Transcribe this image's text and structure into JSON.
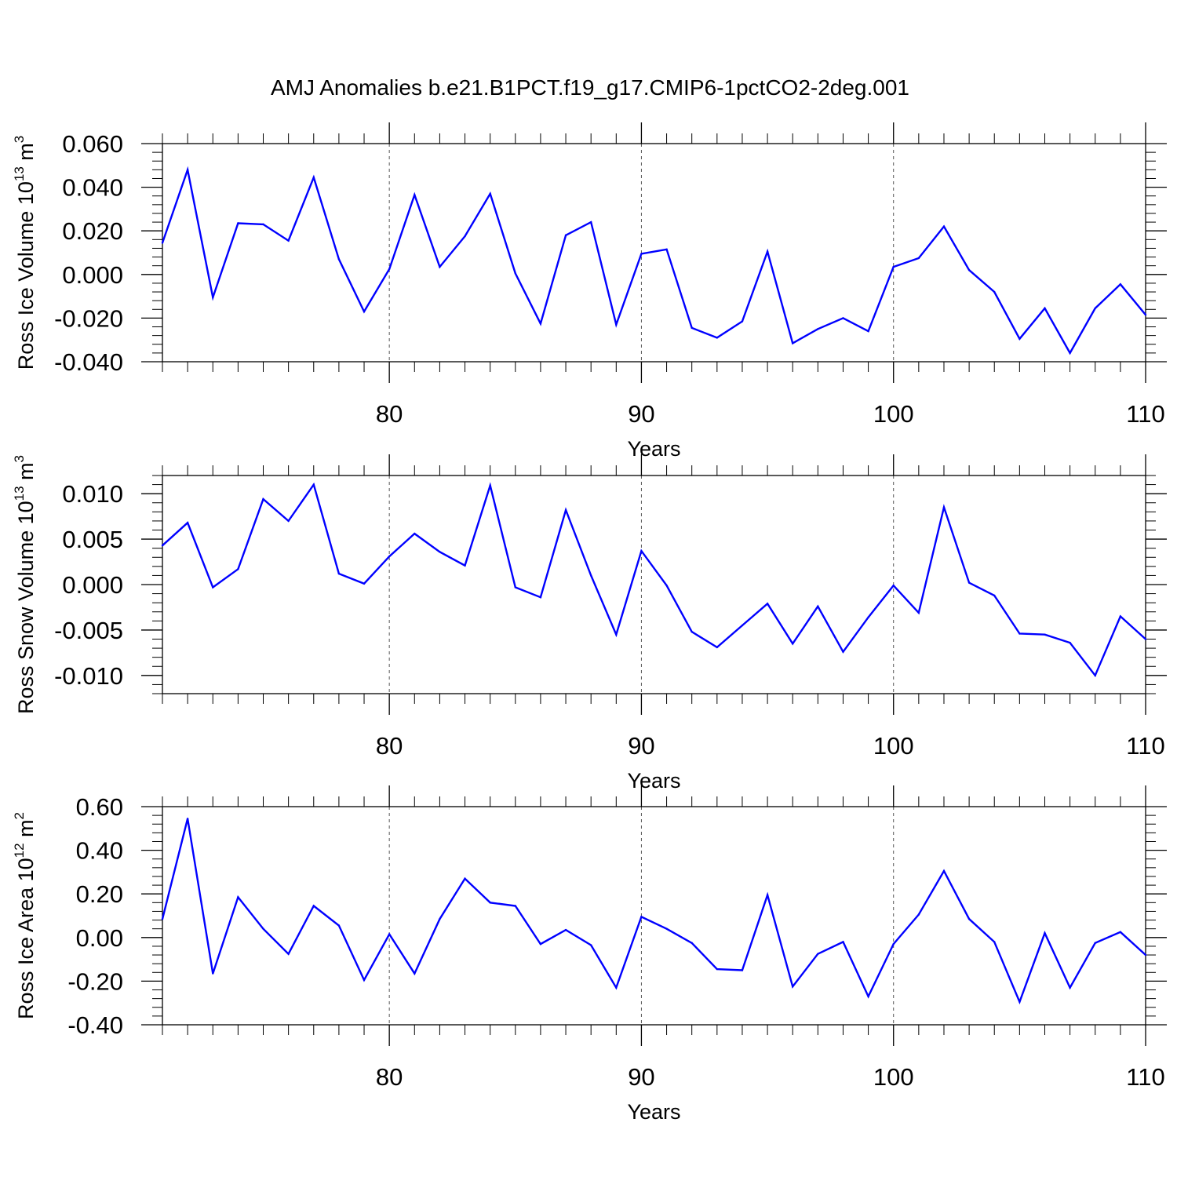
{
  "title": "AMJ Anomalies b.e21.B1PCT.f19_g17.CMIP6-1pctCO2-2deg.001",
  "colors": {
    "line": "#0000ff",
    "axis": "#000000",
    "grid": "#555555"
  },
  "chart_data": [
    {
      "type": "line",
      "ylabel": {
        "text": "Ross Ice Volume 10",
        "exp": "13",
        "unit": " m",
        "unit_exp": "3"
      },
      "xlabel": "Years",
      "xlim": [
        71,
        110
      ],
      "ylim": [
        -0.04,
        0.06
      ],
      "xticks": [
        80,
        90,
        100,
        110
      ],
      "xtick_labels": [
        "80",
        "90",
        "100",
        "110"
      ],
      "yticks": [
        -0.04,
        -0.02,
        0.0,
        0.02,
        0.04,
        0.06
      ],
      "ytick_labels": [
        "-0.040",
        "-0.020",
        "0.000",
        "0.020",
        "0.040",
        "0.060"
      ],
      "grid": "vertical dashed at major x ticks",
      "x": [
        71,
        72,
        73,
        74,
        75,
        76,
        77,
        78,
        79,
        80,
        81,
        82,
        83,
        84,
        85,
        86,
        87,
        88,
        89,
        90,
        91,
        92,
        93,
        94,
        95,
        96,
        97,
        98,
        99,
        100,
        101,
        102,
        103,
        104,
        105,
        106,
        107,
        108,
        109,
        110
      ],
      "values": [
        0.0145,
        0.048,
        -0.0105,
        0.0235,
        0.023,
        0.0155,
        0.0445,
        0.007,
        -0.017,
        0.0025,
        0.0365,
        0.0035,
        0.0175,
        0.037,
        0.0005,
        -0.0225,
        0.018,
        0.024,
        -0.023,
        0.0095,
        0.0115,
        -0.0245,
        -0.029,
        -0.0215,
        0.0105,
        -0.0315,
        -0.025,
        -0.02,
        -0.026,
        0.0035,
        0.0075,
        0.022,
        0.002,
        -0.008,
        -0.0295,
        -0.0155,
        -0.036,
        -0.0155,
        -0.0045,
        -0.0185
      ]
    },
    {
      "type": "line",
      "ylabel": {
        "text": "Ross Snow Volume 10",
        "exp": "13",
        "unit": " m",
        "unit_exp": "3"
      },
      "xlabel": "Years",
      "xlim": [
        71,
        110
      ],
      "ylim": [
        -0.012,
        0.012
      ],
      "xticks": [
        80,
        90,
        100,
        110
      ],
      "xtick_labels": [
        "80",
        "90",
        "100",
        "110"
      ],
      "yticks": [
        -0.01,
        -0.005,
        0.0,
        0.005,
        0.01
      ],
      "ytick_labels": [
        "-0.010",
        "-0.005",
        "0.000",
        "0.005",
        "0.010"
      ],
      "grid": "vertical dashed at major x ticks",
      "x": [
        71,
        72,
        73,
        74,
        75,
        76,
        77,
        78,
        79,
        80,
        81,
        82,
        83,
        84,
        85,
        86,
        87,
        88,
        89,
        90,
        91,
        92,
        93,
        94,
        95,
        96,
        97,
        98,
        99,
        100,
        101,
        102,
        103,
        104,
        105,
        106,
        107,
        108,
        109,
        110
      ],
      "values": [
        0.0043,
        0.0068,
        -0.0003,
        0.0017,
        0.0094,
        0.007,
        0.011,
        0.0012,
        0.0001,
        0.0031,
        0.0056,
        0.0036,
        0.0021,
        0.0109,
        -0.0003,
        -0.0014,
        0.0082,
        0.001,
        -0.0055,
        0.0037,
        -0.0001,
        -0.0052,
        -0.0069,
        -0.0045,
        -0.0021,
        -0.0065,
        -0.0024,
        -0.0074,
        -0.0036,
        -0.0001,
        -0.0031,
        0.0085,
        0.0002,
        -0.0012,
        -0.0054,
        -0.0055,
        -0.0064,
        -0.01,
        -0.0035,
        -0.006
      ]
    },
    {
      "type": "line",
      "ylabel": {
        "text": "Ross Ice Area 10",
        "exp": "12",
        "unit": " m",
        "unit_exp": "2"
      },
      "xlabel": "Years",
      "xlim": [
        71,
        110
      ],
      "ylim": [
        -0.4,
        0.6
      ],
      "xticks": [
        80,
        90,
        100,
        110
      ],
      "xtick_labels": [
        "80",
        "90",
        "100",
        "110"
      ],
      "yticks": [
        -0.4,
        -0.2,
        0.0,
        0.2,
        0.4,
        0.6
      ],
      "ytick_labels": [
        "-0.40",
        "-0.20",
        "0.00",
        "0.20",
        "0.40",
        "0.60"
      ],
      "grid": "vertical dashed at major x ticks",
      "x": [
        71,
        72,
        73,
        74,
        75,
        76,
        77,
        78,
        79,
        80,
        81,
        82,
        83,
        84,
        85,
        86,
        87,
        88,
        89,
        90,
        91,
        92,
        93,
        94,
        95,
        96,
        97,
        98,
        99,
        100,
        101,
        102,
        103,
        104,
        105,
        106,
        107,
        108,
        109,
        110
      ],
      "values": [
        0.085,
        0.545,
        -0.165,
        0.185,
        0.04,
        -0.075,
        0.145,
        0.055,
        -0.195,
        0.015,
        -0.165,
        0.085,
        0.27,
        0.16,
        0.145,
        -0.03,
        0.035,
        -0.035,
        -0.23,
        0.095,
        0.04,
        -0.025,
        -0.145,
        -0.15,
        0.195,
        -0.225,
        -0.075,
        -0.02,
        -0.27,
        -0.03,
        0.105,
        0.305,
        0.085,
        -0.02,
        -0.295,
        0.02,
        -0.23,
        -0.025,
        0.025,
        -0.08
      ]
    }
  ]
}
